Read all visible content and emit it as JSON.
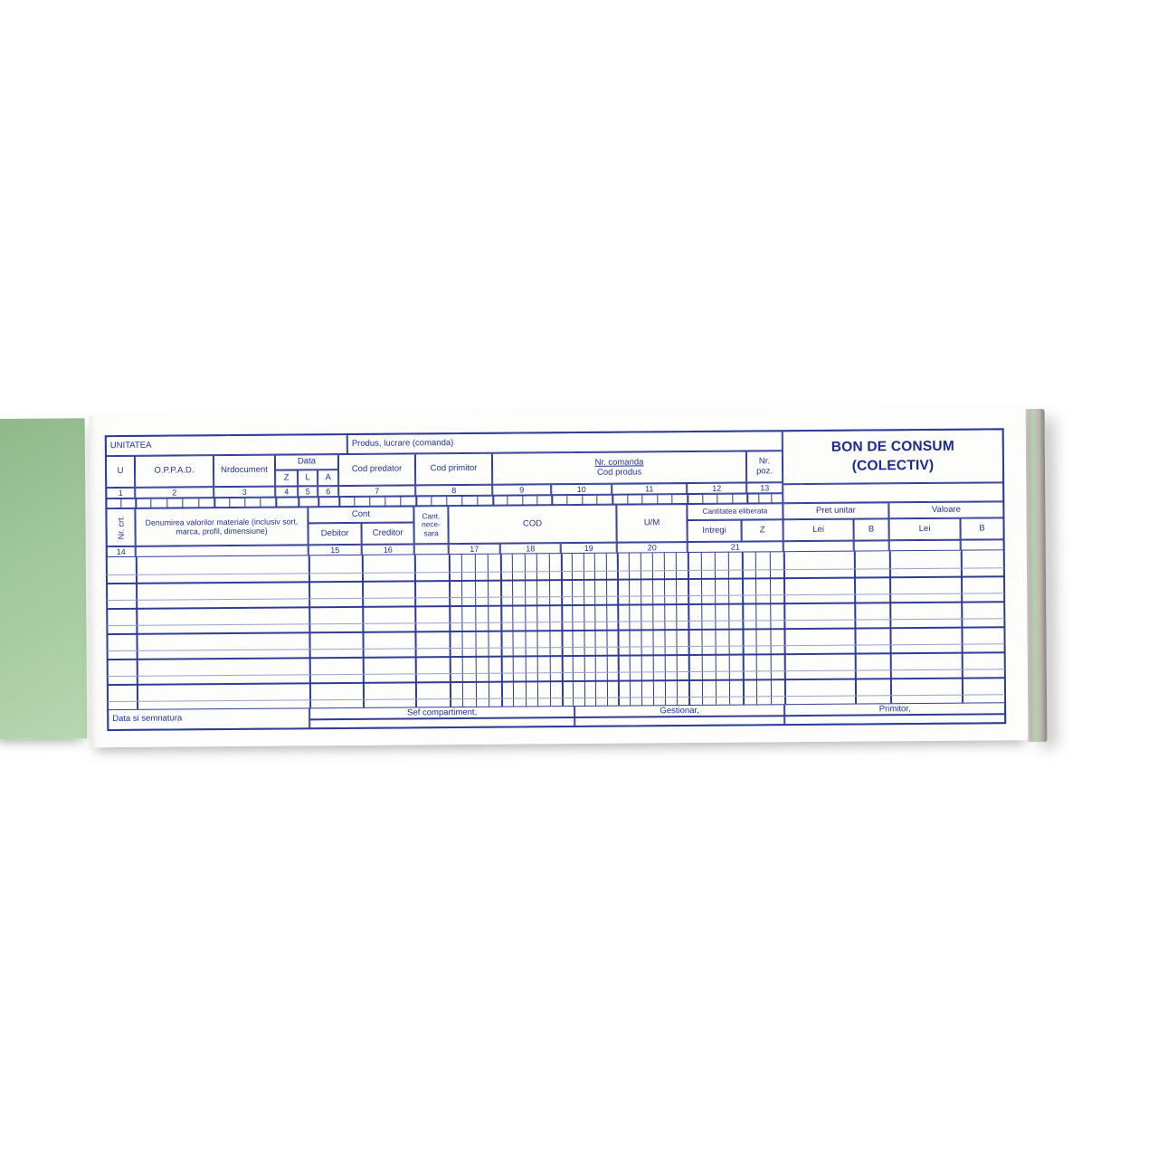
{
  "form": {
    "unitatea": "UNITATEA",
    "produs_lucrare": "Produs, lucrare (comanda)",
    "title1": "BON DE CONSUM",
    "title2": "(COLECTIV)",
    "cols": {
      "u": "U",
      "oppad": "O.P.P.A.D.",
      "nrdocument": "Nrdocument",
      "data": "Data",
      "z": "Z",
      "l": "L",
      "a": "A",
      "cod_predator": "Cod predator",
      "cod_primitor": "Cod primitor",
      "nr_comanda": "Nr. comanda",
      "cod_produs": "Cod produs",
      "nr": "Nr.",
      "poz": "poz."
    },
    "nums_top": [
      "1",
      "2",
      "3",
      "4",
      "5",
      "6",
      "7",
      "8",
      "9",
      "10",
      "11",
      "12",
      "13"
    ],
    "table": {
      "nr_crt": "Nr. crt.",
      "denumirea": "Denumirea valorilor materiale (inclusiv sort, marca, profil, dimensiune)",
      "cont": "Cont",
      "debitor": "Debitor",
      "creditor": "Creditor",
      "cant1": "Cant.",
      "cant2": "nece-",
      "cant3": "sara",
      "cod": "COD",
      "um": "U/M",
      "cant_elib": "Cantitatea eliberata",
      "intregi": "Intregi",
      "z": "Z",
      "pret_unitar": "Pret unitar",
      "valoare": "Valoare",
      "lei": "Lei",
      "b": "B"
    },
    "nums_mid": [
      "14",
      "15",
      "16",
      "17",
      "18",
      "19",
      "20",
      "21"
    ],
    "footer": {
      "data_semnatura": "Data si semnatura",
      "sef": "Sef compartiment,",
      "gestionar": "Gestionar,",
      "primitor": "Primitor,"
    }
  },
  "colors": {
    "line": "#2e3c96",
    "line_light": "#98a1cb",
    "text": "#22309a",
    "title": "#1b2a90",
    "green_sheet": "#a3c99d",
    "stack_green": "#b5d1ae",
    "stack_gray": "#c4c0b8"
  }
}
